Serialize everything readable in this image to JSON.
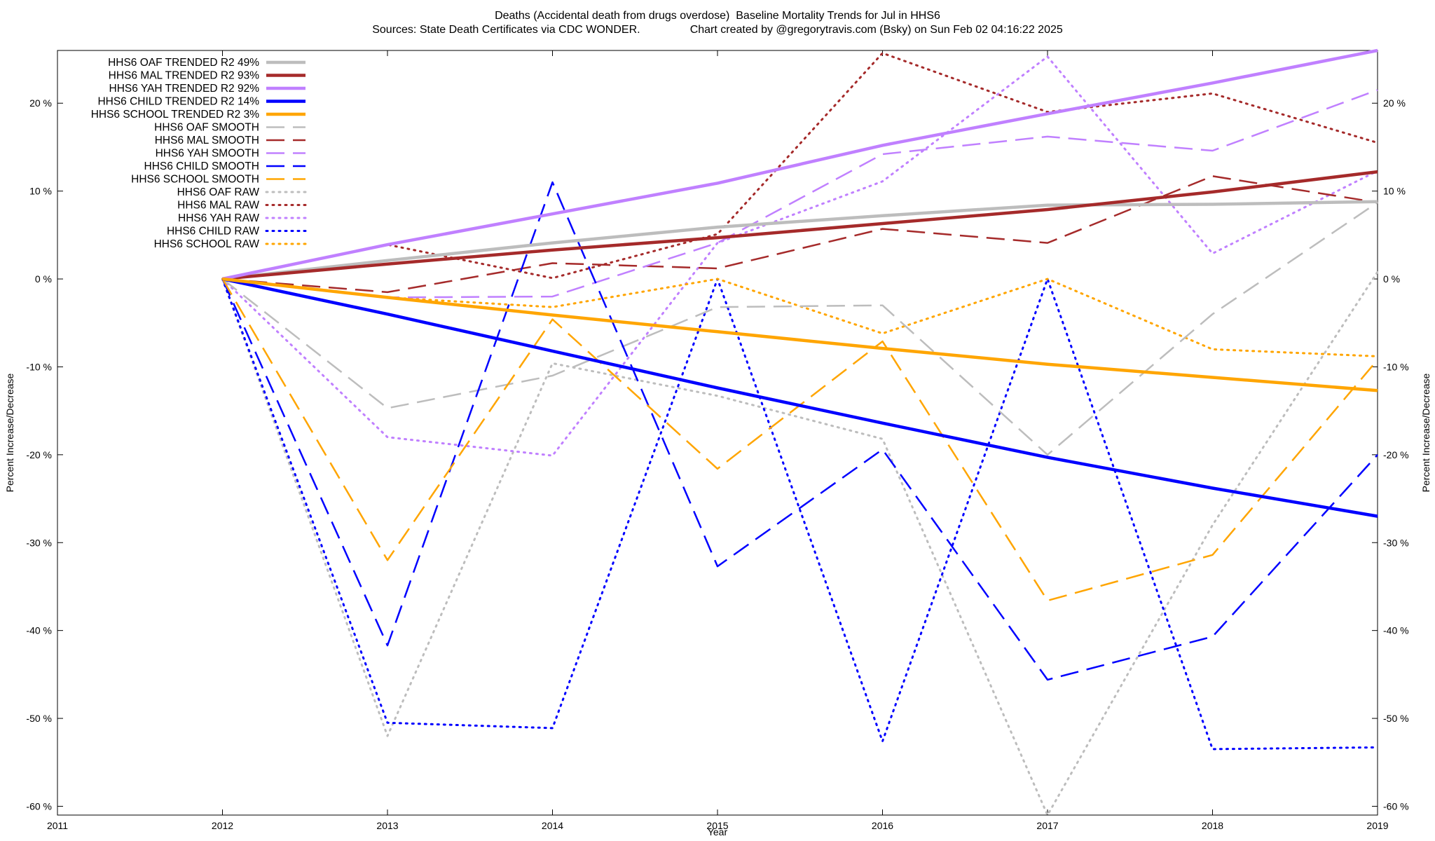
{
  "title_line1": "Deaths (Accidental death from drugs overdose)  Baseline Mortality Trends for Jul in HHS6",
  "title_line2": "Sources: State Death Certificates via CDC WONDER.                Chart created by @gregorytravis.com (Bsky) on Sun Feb 02 04:16:22 2025",
  "chart_data": {
    "type": "line",
    "title": "Deaths (Accidental death from drugs overdose)  Baseline Mortality Trends for Jul in HHS6",
    "subtitle": "Sources: State Death Certificates via CDC WONDER.                Chart created by @gregorytravis.com (Bsky) on Sun Feb 02 04:16:22 2025",
    "xlabel": "Year",
    "ylabel": "Percent Increase/Decrease",
    "ylabel_right": "Percent Increase/Decrease",
    "xlim": [
      2011,
      2019
    ],
    "ylim": [
      -61,
      26
    ],
    "x_ticks": [
      2011,
      2012,
      2013,
      2014,
      2015,
      2016,
      2017,
      2018,
      2019
    ],
    "x_tick_labels": [
      "2011",
      "2012",
      "2013",
      "2014",
      "2015",
      "2016",
      "2017",
      "2018",
      "2019"
    ],
    "y_ticks": [
      -60,
      -50,
      -40,
      -30,
      -20,
      -10,
      0,
      10,
      20
    ],
    "y_tick_labels": [
      "-60 %",
      "-50 %",
      "-40 %",
      "-30 %",
      "-20 %",
      "-10 %",
      "0 %",
      "10 %",
      "20 %"
    ],
    "legend_position": "top-left",
    "grid": false,
    "series": [
      {
        "name": "HHS6 OAF TRENDED R2  49%",
        "style": "solid",
        "color": "#bdbdbd",
        "x": [
          2012,
          2013,
          2014,
          2015,
          2016,
          2017,
          2018,
          2019
        ],
        "y": [
          0,
          2.1,
          4.1,
          5.9,
          7.2,
          8.4,
          8.5,
          8.8
        ]
      },
      {
        "name": "HHS6 MAL TRENDED R2  93%",
        "style": "solid",
        "color": "#a52a2a",
        "x": [
          2012,
          2013,
          2014,
          2015,
          2016,
          2017,
          2018,
          2019
        ],
        "y": [
          0,
          1.7,
          3.3,
          4.7,
          6.3,
          7.9,
          9.9,
          12.2
        ]
      },
      {
        "name": "HHS6 YAH TRENDED R2  92%",
        "style": "solid",
        "color": "#c080ff",
        "x": [
          2012,
          2013,
          2014,
          2015,
          2016,
          2017,
          2018,
          2019
        ],
        "y": [
          0,
          3.9,
          7.4,
          10.9,
          15.2,
          18.8,
          22.3,
          26.0
        ]
      },
      {
        "name": "HHS6 CHILD TRENDED R2  14%",
        "style": "solid",
        "color": "#0000ff",
        "x": [
          2012,
          2013,
          2014,
          2015,
          2016,
          2017,
          2018,
          2019
        ],
        "y": [
          0,
          -4.0,
          -8.2,
          -12.4,
          -16.4,
          -20.3,
          -23.8,
          -27.0
        ]
      },
      {
        "name": "HHS6 SCHOOL TRENDED R2   3%",
        "style": "solid",
        "color": "#ffa500",
        "x": [
          2012,
          2013,
          2014,
          2015,
          2016,
          2017,
          2018,
          2019
        ],
        "y": [
          0,
          -2.1,
          -4.1,
          -6.0,
          -7.9,
          -9.7,
          -11.2,
          -12.7
        ]
      },
      {
        "name": "HHS6 OAF SMOOTH",
        "style": "dash",
        "color": "#bdbdbd",
        "x": [
          2012,
          2013,
          2014,
          2015,
          2016,
          2017,
          2018,
          2019
        ],
        "y": [
          0,
          -14.7,
          -11.0,
          -3.2,
          -3.0,
          -20.0,
          -4.0,
          8.7
        ]
      },
      {
        "name": "HHS6 MAL SMOOTH",
        "style": "dash",
        "color": "#a52a2a",
        "x": [
          2012,
          2013,
          2014,
          2015,
          2016,
          2017,
          2018,
          2019
        ],
        "y": [
          0,
          -1.5,
          1.8,
          1.2,
          5.7,
          4.1,
          11.7,
          8.7
        ]
      },
      {
        "name": "HHS6 YAH SMOOTH",
        "style": "dash",
        "color": "#c080ff",
        "x": [
          2012,
          2013,
          2014,
          2015,
          2016,
          2017,
          2018,
          2019
        ],
        "y": [
          0,
          -2.1,
          -2.0,
          4.1,
          14.2,
          16.2,
          14.6,
          21.5
        ]
      },
      {
        "name": "HHS6 CHILD SMOOTH",
        "style": "dash",
        "color": "#0000ff",
        "x": [
          2012,
          2013,
          2014,
          2015,
          2016,
          2017,
          2018,
          2019
        ],
        "y": [
          0,
          -41.7,
          11.0,
          -32.7,
          -19.4,
          -45.6,
          -40.7,
          -20.0
        ]
      },
      {
        "name": "HHS6 SCHOOL SMOOTH",
        "style": "dash",
        "color": "#ffa500",
        "x": [
          2012,
          2013,
          2014,
          2015,
          2016,
          2017,
          2018,
          2019
        ],
        "y": [
          0,
          -32.0,
          -4.6,
          -21.6,
          -7.1,
          -36.6,
          -31.4,
          -9.2
        ]
      },
      {
        "name": "HHS6 OAF RAW",
        "style": "dot",
        "color": "#bdbdbd",
        "x": [
          2012,
          2013,
          2014,
          2015,
          2016,
          2017,
          2018,
          2019
        ],
        "y": [
          0,
          -52.0,
          -9.6,
          -13.3,
          -18.2,
          -61.0,
          -28.0,
          0.8
        ]
      },
      {
        "name": "HHS6 MAL RAW",
        "style": "dot",
        "color": "#a52a2a",
        "x": [
          2012,
          2013,
          2014,
          2015,
          2016,
          2017,
          2018,
          2019
        ],
        "y": [
          0,
          3.9,
          0.1,
          5.1,
          25.7,
          19.0,
          21.1,
          15.5
        ]
      },
      {
        "name": "HHS6 YAH RAW",
        "style": "dot",
        "color": "#c080ff",
        "x": [
          2012,
          2013,
          2014,
          2015,
          2016,
          2017,
          2018,
          2019
        ],
        "y": [
          0,
          -18.0,
          -20.1,
          4.1,
          11.1,
          25.3,
          2.9,
          12.3
        ]
      },
      {
        "name": "HHS6 CHILD RAW",
        "style": "dot",
        "color": "#0000ff",
        "x": [
          2012,
          2013,
          2014,
          2015,
          2016,
          2017,
          2018,
          2019
        ],
        "y": [
          0,
          -50.5,
          -51.1,
          0.0,
          -52.6,
          0.0,
          -53.5,
          -53.3
        ]
      },
      {
        "name": "HHS6 SCHOOL RAW",
        "style": "dot",
        "color": "#ffa500",
        "x": [
          2012,
          2013,
          2014,
          2015,
          2016,
          2017,
          2018,
          2019
        ],
        "y": [
          0,
          -2.1,
          -3.2,
          0.0,
          -6.2,
          0.0,
          -8.0,
          -8.8
        ]
      }
    ]
  }
}
